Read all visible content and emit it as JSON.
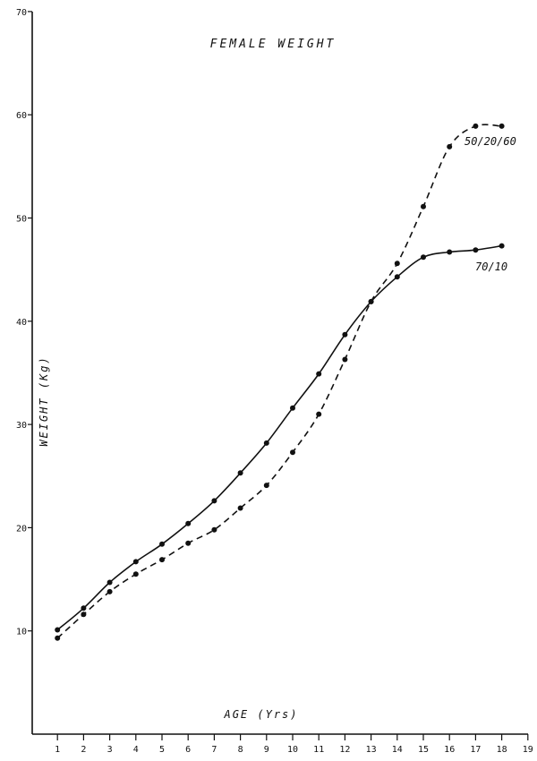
{
  "chart_data": {
    "type": "line",
    "title": "FEMALE WEIGHT",
    "xlabel": "AGE (Yrs)",
    "ylabel": "WEIGHT (Kg)",
    "xlim": [
      0,
      19
    ],
    "ylim": [
      0,
      70
    ],
    "x_ticks": [
      1,
      2,
      3,
      4,
      5,
      6,
      7,
      8,
      9,
      10,
      11,
      12,
      13,
      14,
      15,
      16,
      17,
      18,
      19
    ],
    "y_ticks": [
      10,
      20,
      30,
      40,
      50,
      60,
      70
    ],
    "y_tick_labels": [
      "10",
      "20",
      "30",
      "40",
      "50",
      "60",
      "70"
    ],
    "grid": false,
    "series": [
      {
        "name": "70/10",
        "line_style": "solid",
        "x": [
          1,
          2,
          3,
          4,
          5,
          6,
          7,
          8,
          9,
          10,
          11,
          12,
          13,
          14,
          15,
          16,
          17,
          18
        ],
        "values": [
          10.1,
          12.2,
          14.7,
          16.7,
          18.4,
          20.4,
          22.6,
          25.3,
          28.2,
          31.6,
          34.9,
          38.7,
          41.9,
          44.3,
          46.2,
          46.7,
          46.9,
          47.3
        ]
      },
      {
        "name": "50/20/60",
        "line_style": "dashed",
        "x": [
          1,
          2,
          3,
          4,
          5,
          6,
          7,
          8,
          9,
          10,
          11,
          12,
          13,
          14,
          15,
          16,
          17,
          18
        ],
        "values": [
          9.3,
          11.6,
          13.8,
          15.5,
          16.9,
          18.5,
          19.8,
          21.9,
          24.1,
          27.3,
          31.0,
          36.3,
          41.9,
          45.6,
          51.1,
          56.9,
          58.9,
          58.9
        ]
      }
    ]
  }
}
